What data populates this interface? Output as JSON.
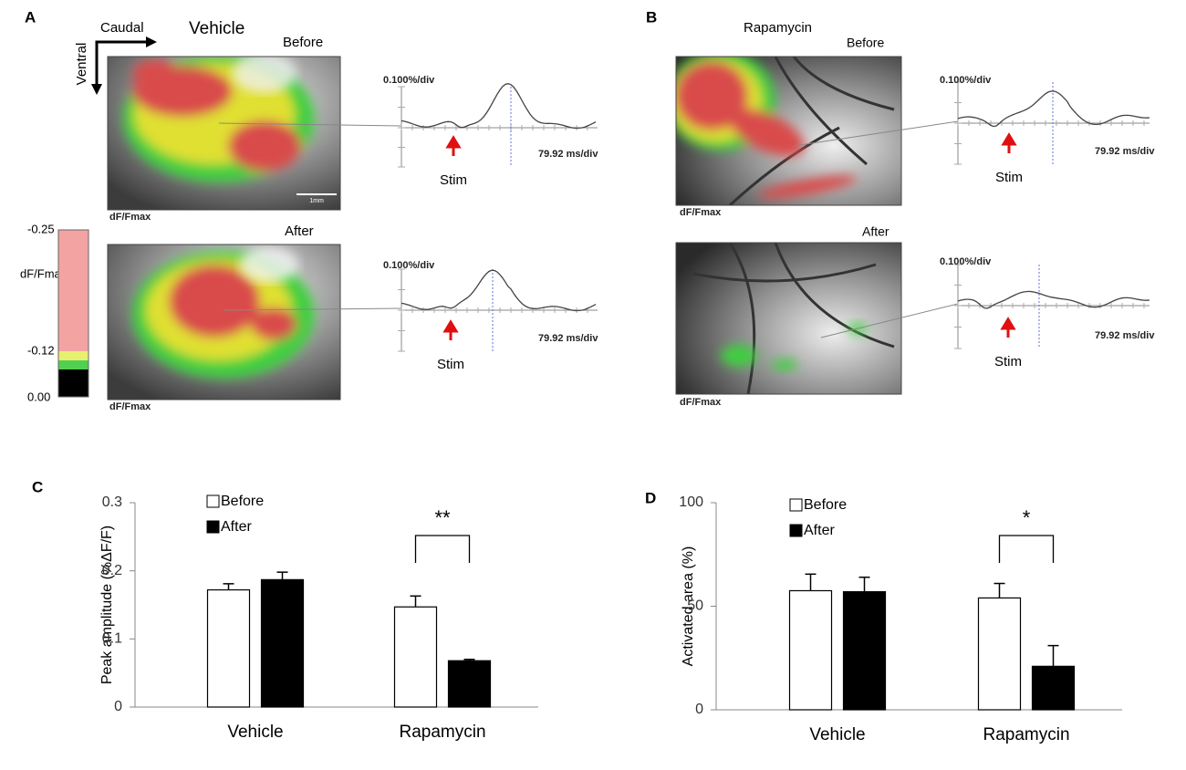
{
  "panel_a": {
    "label": "A",
    "title": "Vehicle",
    "axis_x": "Caudal",
    "axis_y": "Ventral",
    "before": "Before",
    "after": "After",
    "scale_y": "0.100%/div",
    "scale_x": "79.92 ms/div",
    "stim": "Stim",
    "image_label": "dF/Fmax",
    "scale_bar": "1mm"
  },
  "colorbar": {
    "title": "dF/Fmax(%)",
    "ticks": [
      "-0.25",
      "-0.12",
      "0.00"
    ]
  },
  "panel_b": {
    "label": "B",
    "title": "Rapamycin",
    "before": "Before",
    "after": "After",
    "scale_y": "0.100%/div",
    "scale_x": "79.92 ms/div",
    "stim": "Stim",
    "image_label": "dF/Fmax"
  },
  "chart_data": [
    {
      "type": "bar",
      "panel": "C",
      "ylabel": "Peak amplitude (%ΔF/F)",
      "categories": [
        "Vehicle",
        "Rapamycin"
      ],
      "series": [
        {
          "name": "Before",
          "color": "#ffffff",
          "values": [
            0.172,
            0.147
          ],
          "errors": [
            0.009,
            0.016
          ]
        },
        {
          "name": "After",
          "color": "#000000",
          "values": [
            0.187,
            0.068
          ],
          "errors": [
            0.011,
            0.002
          ]
        }
      ],
      "ylim": [
        0,
        0.3
      ],
      "yticks": [
        0,
        0.1,
        0.2,
        0.3
      ],
      "annotation": "**"
    },
    {
      "type": "bar",
      "panel": "D",
      "ylabel": "Activated area (%)",
      "categories": [
        "Vehicle",
        "Rapamycin"
      ],
      "series": [
        {
          "name": "Before",
          "color": "#ffffff",
          "values": [
            57.5,
            54
          ],
          "errors": [
            8,
            7
          ]
        },
        {
          "name": "After",
          "color": "#000000",
          "values": [
            57,
            21
          ],
          "errors": [
            7,
            10
          ]
        }
      ],
      "ylim": [
        0,
        100
      ],
      "yticks": [
        0,
        50,
        100
      ],
      "annotation": "*"
    }
  ]
}
